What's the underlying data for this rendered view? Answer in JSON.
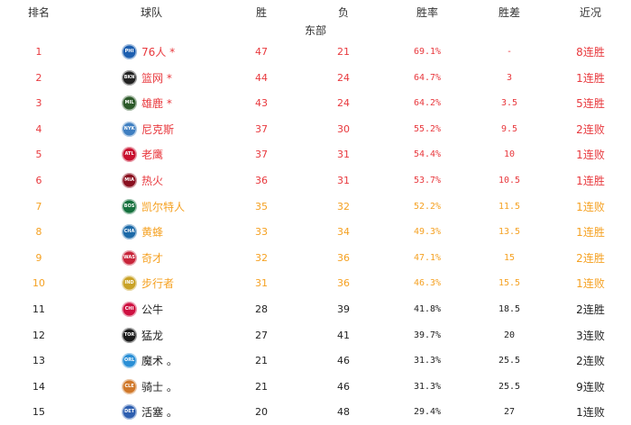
{
  "headers": {
    "rank": "排名",
    "team": "球队",
    "wins": "胜",
    "losses": "负",
    "pct": "胜率",
    "gb": "胜差",
    "streak": "近况"
  },
  "conference": "东部",
  "colors": {
    "playoff": "#e8383d",
    "playin": "#f5a122",
    "other": "#222222"
  },
  "rows": [
    {
      "rank": "1",
      "abbr": "PHI",
      "logo_color": "#1d5fb0",
      "team": "76人 *",
      "w": "47",
      "l": "21",
      "pct": "69.1%",
      "gb": "-",
      "streak": "8连胜",
      "tier": "playoff"
    },
    {
      "rank": "2",
      "abbr": "BKN",
      "logo_color": "#222222",
      "team": "篮网 *",
      "w": "44",
      "l": "24",
      "pct": "64.7%",
      "gb": "3",
      "streak": "1连胜",
      "tier": "playoff"
    },
    {
      "rank": "3",
      "abbr": "MIL",
      "logo_color": "#2d5a2a",
      "team": "雄鹿 *",
      "w": "43",
      "l": "24",
      "pct": "64.2%",
      "gb": "3.5",
      "streak": "5连胜",
      "tier": "playoff"
    },
    {
      "rank": "4",
      "abbr": "NYK",
      "logo_color": "#3f7fc1",
      "team": "尼克斯",
      "w": "37",
      "l": "30",
      "pct": "55.2%",
      "gb": "9.5",
      "streak": "2连败",
      "tier": "playoff"
    },
    {
      "rank": "5",
      "abbr": "ATL",
      "logo_color": "#c8102e",
      "team": "老鹰",
      "w": "37",
      "l": "31",
      "pct": "54.4%",
      "gb": "10",
      "streak": "1连败",
      "tier": "playoff"
    },
    {
      "rank": "6",
      "abbr": "MIA",
      "logo_color": "#8a1020",
      "team": "热火",
      "w": "36",
      "l": "31",
      "pct": "53.7%",
      "gb": "10.5",
      "streak": "1连胜",
      "tier": "playoff"
    },
    {
      "rank": "7",
      "abbr": "BOS",
      "logo_color": "#15703d",
      "team": "凯尔特人",
      "w": "35",
      "l": "32",
      "pct": "52.2%",
      "gb": "11.5",
      "streak": "1连败",
      "tier": "playin"
    },
    {
      "rank": "8",
      "abbr": "CHA",
      "logo_color": "#1d6aa8",
      "team": "黄蜂",
      "w": "33",
      "l": "34",
      "pct": "49.3%",
      "gb": "13.5",
      "streak": "1连胜",
      "tier": "playin"
    },
    {
      "rank": "9",
      "abbr": "WAS",
      "logo_color": "#c8243a",
      "team": "奇才",
      "w": "32",
      "l": "36",
      "pct": "47.1%",
      "gb": "15",
      "streak": "2连胜",
      "tier": "playin"
    },
    {
      "rank": "10",
      "abbr": "IND",
      "logo_color": "#c9a227",
      "team": "步行者",
      "w": "31",
      "l": "36",
      "pct": "46.3%",
      "gb": "15.5",
      "streak": "1连败",
      "tier": "playin"
    },
    {
      "rank": "11",
      "abbr": "CHI",
      "logo_color": "#ce1141",
      "team": "公牛",
      "w": "28",
      "l": "39",
      "pct": "41.8%",
      "gb": "18.5",
      "streak": "2连胜",
      "tier": "other"
    },
    {
      "rank": "12",
      "abbr": "TOR",
      "logo_color": "#1a1a1a",
      "team": "猛龙",
      "w": "27",
      "l": "41",
      "pct": "39.7%",
      "gb": "20",
      "streak": "3连败",
      "tier": "other"
    },
    {
      "rank": "13",
      "abbr": "ORL",
      "logo_color": "#2a8fd6",
      "team": "魔术 。",
      "w": "21",
      "l": "46",
      "pct": "31.3%",
      "gb": "25.5",
      "streak": "2连败",
      "tier": "other"
    },
    {
      "rank": "14",
      "abbr": "CLE",
      "logo_color": "#d0782a",
      "team": "骑士 。",
      "w": "21",
      "l": "46",
      "pct": "31.3%",
      "gb": "25.5",
      "streak": "9连败",
      "tier": "other"
    },
    {
      "rank": "15",
      "abbr": "DET",
      "logo_color": "#2e5fb0",
      "team": "活塞 。",
      "w": "20",
      "l": "48",
      "pct": "29.4%",
      "gb": "27",
      "streak": "1连败",
      "tier": "other"
    }
  ]
}
